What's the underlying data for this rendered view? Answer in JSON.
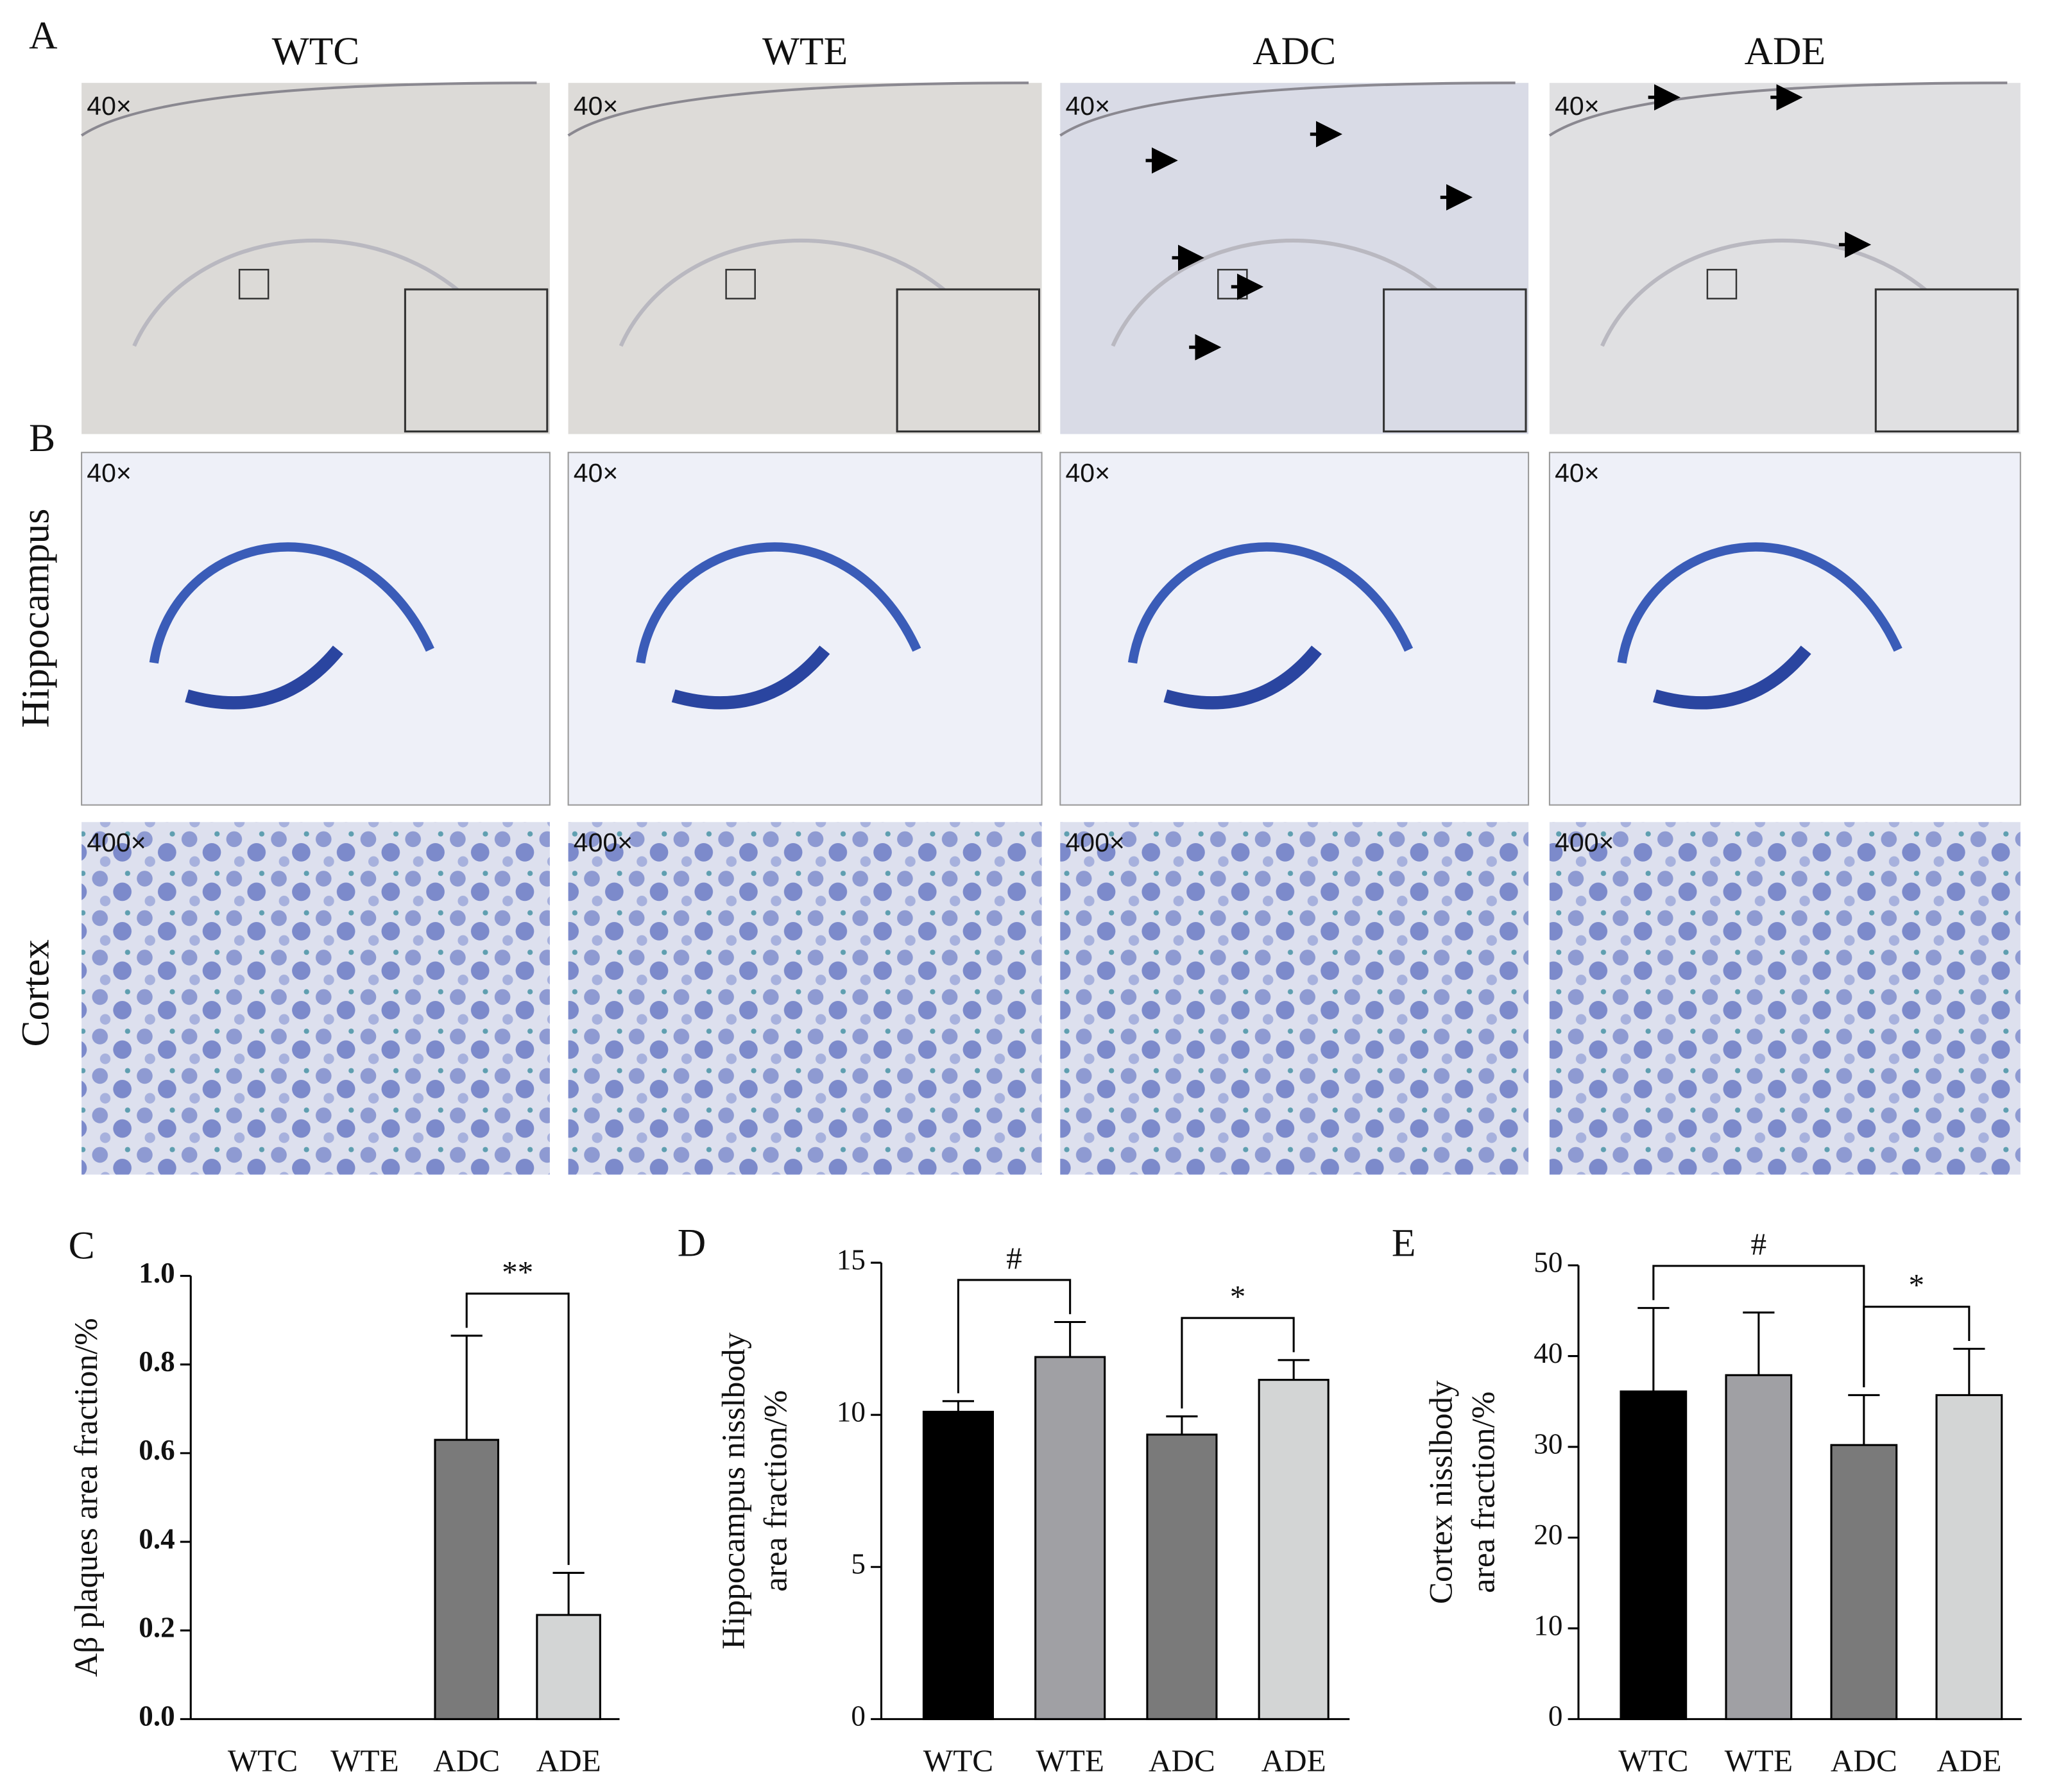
{
  "panels": {
    "A": {
      "label": "A",
      "columns": [
        "WTC",
        "WTE",
        "ADC",
        "ADE"
      ],
      "magnifications": [
        "40×",
        "40×",
        "40×",
        "40×"
      ]
    },
    "B": {
      "label": "B",
      "rows": [
        {
          "label": "Hippocampus",
          "magnifications": [
            "40×",
            "40×",
            "40×",
            "40×"
          ]
        },
        {
          "label": "Cortex",
          "magnifications": [
            "400×",
            "400×",
            "400×",
            "400×"
          ]
        }
      ]
    }
  },
  "chart_data": [
    {
      "type": "bar",
      "label": "C",
      "ylabel": [
        "Aβ plaques area fraction/%"
      ],
      "categories": [
        "WTC",
        "WTE",
        "ADC",
        "ADE"
      ],
      "values": [
        0,
        0,
        0.63,
        0.235
      ],
      "errors": [
        null,
        null,
        0.235,
        0.095
      ],
      "colors": [
        "#000000",
        "#a0a0a4",
        "#7a7a7a",
        "#d3d5d5"
      ],
      "ylim": [
        0,
        1
      ],
      "yticks": [
        {
          "value": 0,
          "label": "0.0"
        },
        0.2,
        0.4,
        0.6,
        0.8,
        {
          "value": 1,
          "label": "1.0"
        }
      ],
      "significance": [
        {
          "from": 2,
          "to": 3,
          "label": "**"
        }
      ]
    },
    {
      "type": "bar",
      "label": "D",
      "ylabel": [
        "Hippocampus nisslbody",
        "area fraction/%"
      ],
      "categories": [
        "WTC",
        "WTE",
        "ADC",
        "ADE"
      ],
      "values": [
        10.1,
        11.9,
        9.35,
        11.15
      ],
      "errors": [
        0.35,
        1.15,
        0.6,
        0.65
      ],
      "colors": [
        "#000000",
        "#a0a0a4",
        "#7a7a7a",
        "#d3d5d5"
      ],
      "ylim": [
        0,
        15
      ],
      "yticks": [
        0,
        5,
        10,
        15
      ],
      "significance": [
        {
          "from": 0,
          "to": 1,
          "label": "#"
        },
        {
          "from": 2,
          "to": 3,
          "label": "*"
        }
      ]
    },
    {
      "type": "bar",
      "label": "E",
      "ylabel": [
        "Cortex  nisslbody",
        "area fraction/%"
      ],
      "categories": [
        "WTC",
        "WTE",
        "ADC",
        "ADE"
      ],
      "values": [
        36.1,
        37.9,
        30.2,
        35.7
      ],
      "errors": [
        9.2,
        6.9,
        5.5,
        5.1
      ],
      "colors": [
        "#000000",
        "#a0a0a4",
        "#7a7a7a",
        "#d3d5d5"
      ],
      "ylim": [
        0,
        50
      ],
      "yticks": [
        0,
        10,
        20,
        30,
        40,
        50
      ],
      "significance": [
        {
          "from": 0,
          "to": 2,
          "label": "#"
        },
        {
          "from": 2,
          "to": 3,
          "label": "*"
        }
      ]
    }
  ]
}
